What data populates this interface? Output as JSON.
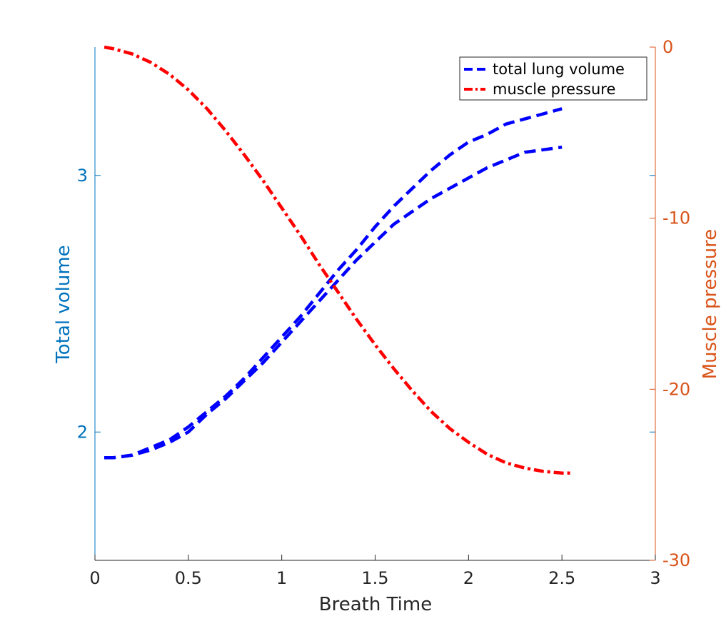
{
  "chart_data": {
    "type": "line",
    "xlabel": "Breath Time",
    "ylabel_left": "Total volume",
    "ylabel_right": "Muscle pressure",
    "xlim": [
      0,
      3
    ],
    "ylim_left": [
      1.5,
      3.5
    ],
    "ylim_right": [
      -30,
      0
    ],
    "x_ticks": [
      "0",
      "0.5",
      "1",
      "1.5",
      "2",
      "2.5",
      "3"
    ],
    "y_left_ticks": [
      "2",
      "3"
    ],
    "y_right_ticks": [
      "0",
      "-10",
      "-20",
      "-30"
    ],
    "grid": false,
    "legend_placement": "top-right",
    "legend": [
      {
        "label": "total lung volume",
        "color": "#0000ff",
        "style": "dashed"
      },
      {
        "label": "muscle pressure",
        "color": "#ff0000",
        "style": "dashdot"
      }
    ],
    "series": [
      {
        "name": "total lung volume",
        "axis": "left",
        "color": "#0000ff",
        "x": [
          0.05,
          0.1,
          0.2,
          0.3,
          0.4,
          0.5,
          0.6,
          0.7,
          0.8,
          0.9,
          1.0,
          1.1,
          1.2,
          1.3,
          1.4,
          1.5,
          1.6,
          1.7,
          1.8,
          1.9,
          2.0,
          2.1,
          2.2,
          2.3,
          2.4,
          2.5
        ],
        "y": [
          1.9,
          1.9,
          1.91,
          1.94,
          1.97,
          2.02,
          2.08,
          2.14,
          2.21,
          2.29,
          2.37,
          2.45,
          2.54,
          2.63,
          2.71,
          2.8,
          2.88,
          2.95,
          3.02,
          3.08,
          3.13,
          3.16,
          3.2,
          3.22,
          3.24,
          3.26
        ]
      },
      {
        "name": "total lung volume",
        "axis": "left",
        "color": "#0000ff",
        "x": [
          0.05,
          0.1,
          0.2,
          0.3,
          0.4,
          0.5,
          0.6,
          0.7,
          0.8,
          0.9,
          1.0,
          1.1,
          1.2,
          1.3,
          1.4,
          1.5,
          1.6,
          1.7,
          1.8,
          1.9,
          2.0,
          2.1,
          2.2,
          2.3,
          2.4,
          2.5
        ],
        "y": [
          1.9,
          1.9,
          1.91,
          1.93,
          1.96,
          2.0,
          2.07,
          2.13,
          2.2,
          2.27,
          2.35,
          2.43,
          2.51,
          2.59,
          2.67,
          2.74,
          2.81,
          2.86,
          2.91,
          2.95,
          2.99,
          3.03,
          3.06,
          3.09,
          3.1,
          3.11
        ]
      },
      {
        "name": "muscle pressure",
        "axis": "right",
        "color": "#ff0000",
        "x": [
          0.05,
          0.1,
          0.2,
          0.3,
          0.4,
          0.5,
          0.6,
          0.7,
          0.8,
          0.9,
          1.0,
          1.1,
          1.2,
          1.3,
          1.4,
          1.5,
          1.6,
          1.7,
          1.8,
          1.9,
          2.0,
          2.1,
          2.2,
          2.3,
          2.4,
          2.5,
          2.55
        ],
        "y": [
          0.0,
          -0.1,
          -0.4,
          -0.9,
          -1.6,
          -2.5,
          -3.6,
          -4.9,
          -6.3,
          -7.8,
          -9.4,
          -11.0,
          -12.7,
          -14.3,
          -15.9,
          -17.4,
          -18.8,
          -20.1,
          -21.3,
          -22.3,
          -23.1,
          -23.8,
          -24.3,
          -24.6,
          -24.8,
          -24.9,
          -24.9
        ]
      }
    ]
  }
}
